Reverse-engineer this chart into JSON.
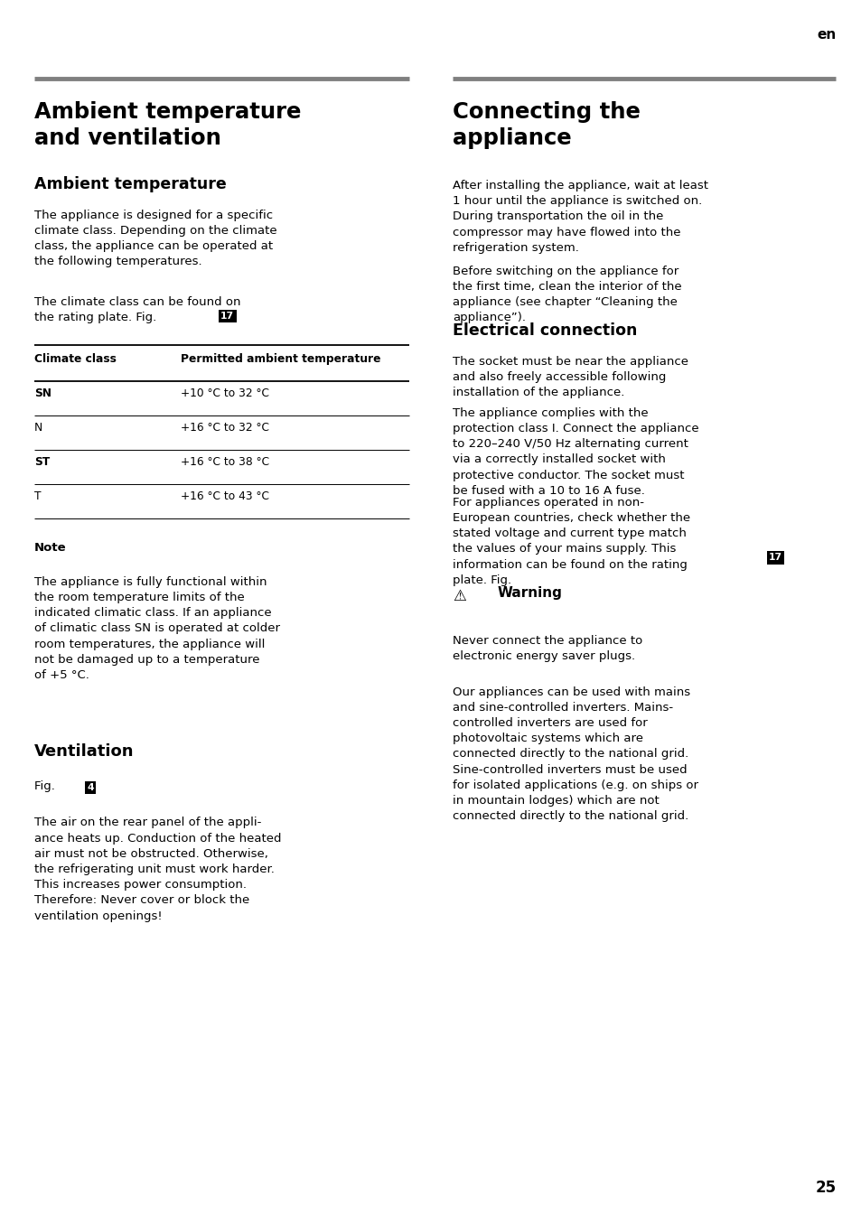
{
  "page_label": "en",
  "page_number": "25",
  "top_line_color": "#808080",
  "bg_color": "#ffffff",
  "text_color": "#000000",
  "left_col": {
    "main_title": "Ambient temperature\nand ventilation",
    "section1_title": "Ambient temperature",
    "para1": "The appliance is designed for a specific\nclimate class. Depending on the climate\nclass, the appliance can be operated at\nthe following temperatures.",
    "para2_part1": "The climate class can be found on\nthe rating plate. Fig. ",
    "fig17_label": "17",
    "table_headers": [
      "Climate class",
      "Permitted ambient temperature"
    ],
    "table_rows": [
      [
        "SN",
        "+10 °C to 32 °C"
      ],
      [
        "N",
        "+16 °C to 32 °C"
      ],
      [
        "ST",
        "+16 °C to 38 °C"
      ],
      [
        "T",
        "+16 °C to 43 °C"
      ]
    ],
    "table_row_bold": [
      true,
      false,
      true,
      false
    ],
    "note_title": "Note",
    "note_text": "The appliance is fully functional within\nthe room temperature limits of the\nindicated climatic class. If an appliance\nof climatic class SN is operated at colder\nroom temperatures, the appliance will\nnot be damaged up to a temperature\nof +5 °C.",
    "section2_title": "Ventilation",
    "fig4_text": "Fig. ",
    "fig4_label": "4",
    "vent_text": "The air on the rear panel of the appli-\nance heats up. Conduction of the heated\nair must not be obstructed. Otherwise,\nthe refrigerating unit must work harder.\nThis increases power consumption.\nTherefore: Never cover or block the\nventilation openings!"
  },
  "right_col": {
    "main_title": "Connecting the\nappliance",
    "connecting_text": "After installing the appliance, wait at least\n1 hour until the appliance is switched on.\nDuring transportation the oil in the\ncompressor may have flowed into the\nrefrigeration system.",
    "connecting_text2": "Before switching on the appliance for\nthe first time, clean the interior of the\nappliance (see chapter “Cleaning the\nappliance”).",
    "section_title": "Electrical connection",
    "elec_text1": "The socket must be near the appliance\nand also freely accessible following\ninstallation of the appliance.",
    "elec_text2": "The appliance complies with the\nprotection class I. Connect the appliance\nto 220–240 V/50 Hz alternating current\nvia a correctly installed socket with\nprotective conductor. The socket must\nbe fused with a 10 to 16 A fuse.",
    "elec_text3": "For appliances operated in non-\nEuropean countries, check whether the\nstated voltage and current type match\nthe values of your mains supply. This\ninformation can be found on the rating\nplate. Fig. ",
    "fig17_label": "17",
    "warning_title": "Warning",
    "warning_text1": "Never connect the appliance to\nelectronic energy saver plugs.",
    "warning_text2": "Our appliances can be used with mains\nand sine-controlled inverters. Mains-\ncontrolled inverters are used for\nphotovoltaic systems which are\nconnected directly to the national grid.\nSine-controlled inverters must be used\nfor isolated applications (e.g. on ships or\nin mountain lodges) which are not\nconnected directly to the national grid."
  }
}
